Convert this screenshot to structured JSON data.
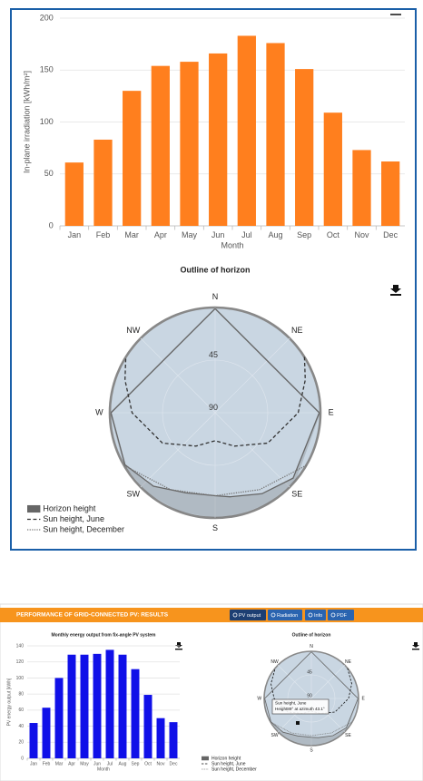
{
  "header": {
    "title": "PERFORMANCE OF GRID-CONNECTED PV: RESULTS",
    "buttons": [
      "PV output",
      "Radiation",
      "Info",
      "PDF"
    ]
  },
  "chart_data": [
    {
      "type": "bar",
      "ylabel": "In-plane irradiation [kWh/m²]",
      "xlabel": "Month",
      "categories": [
        "Jan",
        "Feb",
        "Mar",
        "Apr",
        "May",
        "Jun",
        "Jul",
        "Aug",
        "Sep",
        "Oct",
        "Nov",
        "Dec"
      ],
      "values": [
        61,
        83,
        130,
        154,
        158,
        166,
        183,
        176,
        151,
        109,
        73,
        62
      ],
      "color": "#ff7f1e",
      "ylim": [
        0,
        200
      ],
      "yticks": [
        0,
        50,
        100,
        150,
        200
      ],
      "grid": true
    },
    {
      "type": "polar",
      "title": "Outline of horizon",
      "angle_labels": [
        "N",
        "NE",
        "E",
        "SE",
        "S",
        "SW",
        "W",
        "NW"
      ],
      "rlim": [
        90,
        0
      ],
      "rticks": [
        45,
        90
      ],
      "series": [
        {
          "name": "Horizon height",
          "color": "#666666",
          "style": "area",
          "x": [
            0,
            90,
            130,
            150,
            170,
            180,
            200,
            220,
            240,
            270,
            360
          ],
          "values": [
            1,
            1,
            3,
            10,
            17,
            19,
            17,
            8,
            1,
            1,
            1
          ]
        },
        {
          "name": "Sun height, June",
          "color": "#333333",
          "style": "dashed",
          "x": [
            58,
            70,
            90,
            120,
            150,
            180,
            210,
            240,
            270,
            290,
            302
          ],
          "values": [
            0,
            8,
            19,
            38,
            57,
            66,
            57,
            38,
            19,
            8,
            0
          ]
        },
        {
          "name": "Sun height, December",
          "color": "#777777",
          "style": "dotted",
          "x": [
            120,
            150,
            180,
            210,
            240
          ],
          "values": [
            0,
            14,
            19,
            14,
            0
          ]
        }
      ]
    },
    {
      "type": "bar",
      "title": "Monthly energy output from fix-angle PV system",
      "ylabel": "PV energy output [kWh]",
      "xlabel": "Month",
      "categories": [
        "Jan",
        "Feb",
        "Mar",
        "Apr",
        "May",
        "Jun",
        "Jul",
        "Aug",
        "Sep",
        "Oct",
        "Nov",
        "Dec"
      ],
      "values": [
        44,
        63,
        100,
        129,
        129,
        130,
        135,
        129,
        111,
        79,
        50,
        45
      ],
      "color": "#1010e8",
      "ylim": [
        0,
        140
      ],
      "yticks": [
        0,
        20,
        40,
        60,
        80,
        100,
        120,
        140
      ],
      "grid": true
    },
    {
      "type": "polar",
      "title": "Outline of horizon",
      "angle_labels": [
        "N",
        "NE",
        "E",
        "SE",
        "S",
        "SW",
        "W",
        "NW"
      ],
      "rlim": [
        90,
        0
      ],
      "rticks": [
        45,
        90
      ],
      "tooltip": [
        "Sun height, June",
        "Height89° at azimuth 43.1°"
      ],
      "series": [
        {
          "name": "Horizon height",
          "color": "#666666",
          "style": "area",
          "x": [
            0,
            90,
            130,
            150,
            170,
            180,
            200,
            220,
            240,
            270,
            360
          ],
          "values": [
            1,
            1,
            3,
            8,
            14,
            16,
            14,
            6,
            1,
            1,
            1
          ]
        },
        {
          "name": "Sun height, June",
          "color": "#111111",
          "style": "dashed",
          "x": [
            50,
            70,
            90,
            120,
            150,
            180,
            210,
            240,
            270,
            290,
            310
          ],
          "values": [
            0,
            8,
            19,
            38,
            57,
            66,
            57,
            38,
            19,
            8,
            0
          ]
        },
        {
          "name": "Sun height, December",
          "color": "#777777",
          "style": "dotted",
          "x": [
            120,
            150,
            180,
            210,
            240
          ],
          "values": [
            0,
            14,
            19,
            14,
            0
          ]
        }
      ]
    }
  ]
}
